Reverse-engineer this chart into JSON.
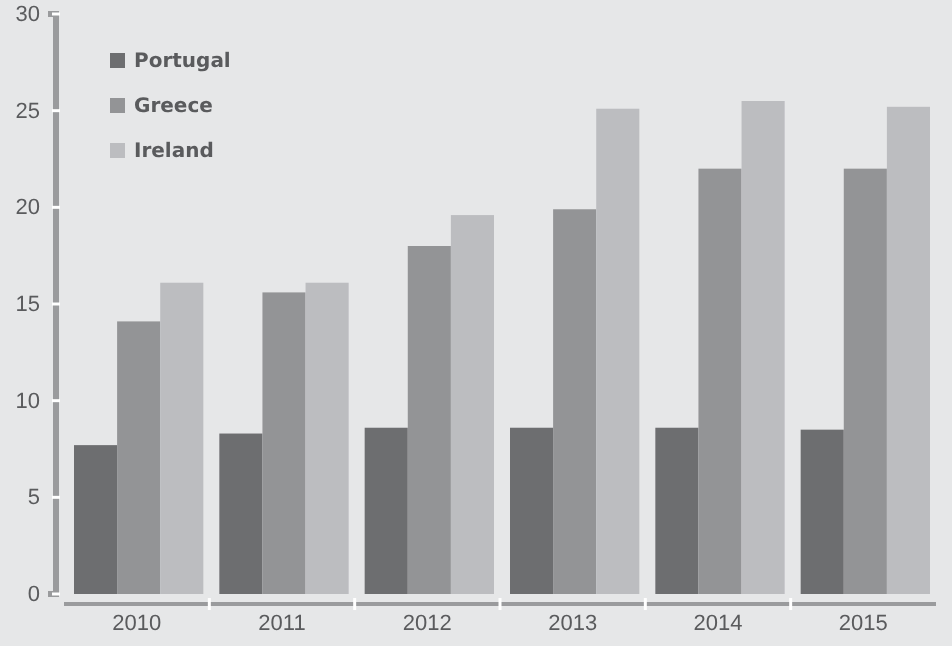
{
  "chart_data": {
    "type": "bar",
    "categories": [
      "2010",
      "2011",
      "2012",
      "2013",
      "2014",
      "2015"
    ],
    "series": [
      {
        "name": "Portugal",
        "color": "#6d6e70",
        "values": [
          7.7,
          8.3,
          8.6,
          8.6,
          8.6,
          8.5
        ]
      },
      {
        "name": "Greece",
        "color": "#939496",
        "values": [
          14.1,
          15.6,
          18.0,
          19.9,
          22.0,
          22.0
        ]
      },
      {
        "name": "Ireland",
        "color": "#bcbdc0",
        "values": [
          16.1,
          16.1,
          19.6,
          25.1,
          25.5,
          25.2
        ]
      }
    ],
    "ylim": [
      0,
      30
    ],
    "yticks": [
      0,
      5,
      10,
      15,
      20,
      25,
      30
    ],
    "grid": false,
    "legend": "top left"
  }
}
